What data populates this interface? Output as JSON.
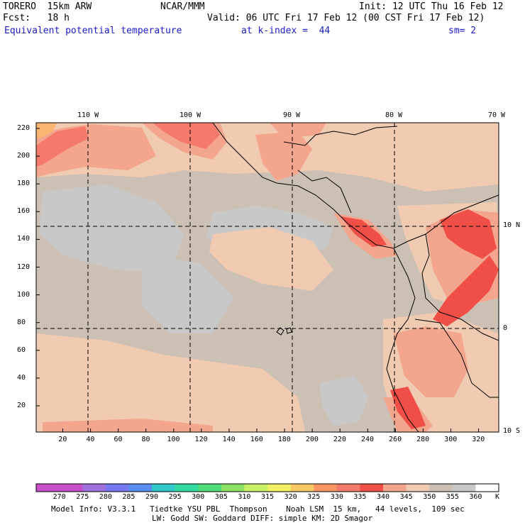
{
  "header": {
    "model": "TORERO",
    "resolution": "15km ARW",
    "center": "NCAR/MMM",
    "init": "Init: 12 UTC Thu 16 Feb 12",
    "fcst_label": "Fcst:",
    "fcst_value": "18 h",
    "valid": "Valid: 06 UTC Fri 17 Feb 12 (00 CST Fri 17 Feb 12)",
    "field": "Equivalent potential temperature",
    "level": "at k-index =  44",
    "smoothing": "sm= 2"
  },
  "map": {
    "top_lon_labels": [
      "110 W",
      "100 W",
      "90 W",
      "80 W",
      "70 W"
    ],
    "right_lat_labels": [
      "10 N",
      "0",
      "10 S"
    ],
    "left_y_ticks": [
      "220",
      "200",
      "180",
      "160",
      "140",
      "120",
      "100",
      "80",
      "60",
      "40",
      "20"
    ],
    "bottom_x_ticks": [
      "20",
      "40",
      "60",
      "80",
      "100",
      "120",
      "140",
      "160",
      "180",
      "200",
      "220",
      "240",
      "260",
      "280",
      "300",
      "320"
    ],
    "colors": {
      "grey": "#c8c8c8",
      "grey_brown": "#ccc0b4",
      "peach": "#f0cab1",
      "salmon": "#f4a58d",
      "coral": "#f57a6b",
      "red": "#ef4f47",
      "orange": "#fbb573"
    }
  },
  "colorbar": {
    "labels": [
      "270",
      "275",
      "280",
      "285",
      "290",
      "295",
      "300",
      "305",
      "310",
      "315",
      "320",
      "325",
      "330",
      "335",
      "340",
      "345",
      "350",
      "355",
      "360"
    ],
    "unit": "K",
    "colors": [
      "#c84fc8",
      "#a070dc",
      "#7878f0",
      "#5a8ef0",
      "#32c8c8",
      "#32dca0",
      "#50dc78",
      "#8ce064",
      "#c8f064",
      "#f0f064",
      "#fac864",
      "#fa9664",
      "#f57a6b",
      "#ef4f47",
      "#f4a58d",
      "#f0cab1",
      "#ccc0b4",
      "#c8c8c8",
      "#ffffff"
    ]
  },
  "footer": {
    "line1": "Model Info: V3.3.1   Tiedtke YSU PBL  Thompson    Noah LSM  15 km,   44 levels,  109 sec",
    "line2": "LW: Godd SW: Goddard DIFF: simple KM: 2D Smagor"
  }
}
